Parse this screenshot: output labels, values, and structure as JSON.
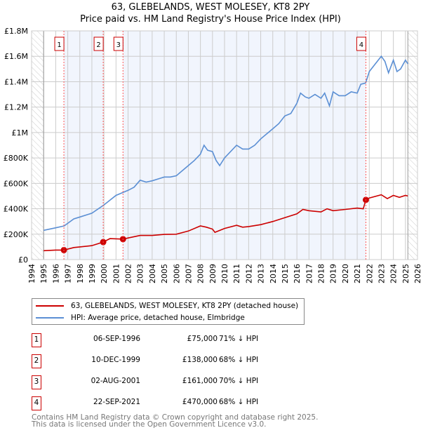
{
  "title": {
    "line1": "63, GLEBELANDS, WEST MOLESEY, KT8 2PY",
    "line2": "Price paid vs. HM Land Registry's House Price Index (HPI)"
  },
  "chart_data": {
    "type": "line",
    "xlim": [
      1994,
      2026
    ],
    "ylim": [
      0,
      1800000
    ],
    "x_ticks": [
      "1994",
      "1995",
      "1996",
      "1997",
      "1998",
      "1999",
      "2000",
      "2001",
      "2002",
      "2003",
      "2004",
      "2005",
      "2006",
      "2007",
      "2008",
      "2009",
      "2010",
      "2011",
      "2012",
      "2013",
      "2014",
      "2015",
      "2016",
      "2017",
      "2018",
      "2019",
      "2020",
      "2021",
      "2022",
      "2023",
      "2024",
      "2025",
      "2026"
    ],
    "y_ticks": [
      {
        "v": 0,
        "label": "£0"
      },
      {
        "v": 200000,
        "label": "£200K"
      },
      {
        "v": 400000,
        "label": "£400K"
      },
      {
        "v": 600000,
        "label": "£600K"
      },
      {
        "v": 800000,
        "label": "£800K"
      },
      {
        "v": 1000000,
        "label": "£1M"
      },
      {
        "v": 1200000,
        "label": "£1.2M"
      },
      {
        "v": 1400000,
        "label": "£1.4M"
      },
      {
        "v": 1600000,
        "label": "£1.6M"
      },
      {
        "v": 1800000,
        "label": "£1.8M"
      }
    ],
    "grid": true,
    "data_range": [
      1995,
      2025.2
    ],
    "series": [
      {
        "name": "63, GLEBELANDS, WEST MOLESEY, KT8 2PY (detached house)",
        "color": "#cc0000",
        "x": [
          1995,
          1996,
          1996.68,
          1997.5,
          1998,
          1999,
          1999.94,
          2000.5,
          2001.58,
          2002,
          2003,
          2004,
          2005,
          2006,
          2007,
          2008,
          2008.5,
          2009,
          2009.2,
          2010,
          2011,
          2011.5,
          2012,
          2013,
          2014,
          2015,
          2016,
          2016.5,
          2017,
          2018,
          2018.5,
          2019,
          2020,
          2021,
          2021.5,
          2021.72,
          2022,
          2023,
          2023.5,
          2024,
          2024.5,
          2025,
          2025.2
        ],
        "y": [
          70000,
          75000,
          75000,
          95000,
          100000,
          110000,
          138000,
          165000,
          161000,
          170000,
          190000,
          190000,
          198000,
          200000,
          225000,
          265000,
          255000,
          240000,
          215000,
          245000,
          270000,
          255000,
          260000,
          275000,
          300000,
          330000,
          360000,
          395000,
          385000,
          375000,
          400000,
          385000,
          395000,
          405000,
          400000,
          470000,
          485000,
          510000,
          480000,
          505000,
          490000,
          505000,
          500000
        ]
      },
      {
        "name": "HPI: Average price, detached house, Elmbridge",
        "color": "#5b8fd4",
        "x": [
          1995,
          1996,
          1996.7,
          1997.5,
          1998,
          1999,
          2000,
          2001,
          2002,
          2002.5,
          2003,
          2003.5,
          2004,
          2005,
          2005.5,
          2006,
          2007,
          2007.5,
          2008,
          2008.3,
          2008.6,
          2009,
          2009.3,
          2009.6,
          2010,
          2010.5,
          2011,
          2011.5,
          2012,
          2012.5,
          2013,
          2014,
          2014.5,
          2015,
          2015.5,
          2016,
          2016.3,
          2016.7,
          2017,
          2017.5,
          2018,
          2018.3,
          2018.7,
          2019,
          2019.5,
          2020,
          2020.5,
          2021,
          2021.3,
          2021.7,
          2022,
          2022.5,
          2023,
          2023.3,
          2023.6,
          2024,
          2024.3,
          2024.6,
          2025,
          2025.2
        ],
        "y": [
          230000,
          250000,
          265000,
          320000,
          335000,
          365000,
          430000,
          505000,
          545000,
          570000,
          625000,
          610000,
          620000,
          650000,
          650000,
          660000,
          740000,
          780000,
          830000,
          900000,
          860000,
          850000,
          780000,
          740000,
          800000,
          850000,
          900000,
          870000,
          870000,
          900000,
          950000,
          1030000,
          1070000,
          1130000,
          1150000,
          1230000,
          1310000,
          1280000,
          1270000,
          1300000,
          1270000,
          1310000,
          1210000,
          1320000,
          1290000,
          1290000,
          1320000,
          1310000,
          1380000,
          1390000,
          1480000,
          1540000,
          1600000,
          1560000,
          1470000,
          1570000,
          1480000,
          1500000,
          1570000,
          1540000
        ]
      }
    ],
    "sales": [
      {
        "label": "1",
        "x": 1996.68,
        "price": 75000
      },
      {
        "label": "2",
        "x": 1999.94,
        "price": 138000
      },
      {
        "label": "3",
        "x": 2001.58,
        "price": 161000
      },
      {
        "label": "4",
        "x": 2021.72,
        "price": 470000
      }
    ]
  },
  "legend": {
    "items": [
      {
        "label": "63, GLEBELANDS, WEST MOLESEY, KT8 2PY (detached house)",
        "color": "#cc0000"
      },
      {
        "label": "HPI: Average price, detached house, Elmbridge",
        "color": "#5b8fd4"
      }
    ]
  },
  "transactions": [
    {
      "num": "1",
      "date": "06-SEP-1996",
      "price": "£75,000",
      "hpi": "71% ↓ HPI"
    },
    {
      "num": "2",
      "date": "10-DEC-1999",
      "price": "£138,000",
      "hpi": "68% ↓ HPI"
    },
    {
      "num": "3",
      "date": "02-AUG-2001",
      "price": "£161,000",
      "hpi": "70% ↓ HPI"
    },
    {
      "num": "4",
      "date": "22-SEP-2021",
      "price": "£470,000",
      "hpi": "68% ↓ HPI"
    }
  ],
  "footer": {
    "line1": "Contains HM Land Registry data © Crown copyright and database right 2025.",
    "line2": "This data is licensed under the Open Government Licence v3.0."
  }
}
